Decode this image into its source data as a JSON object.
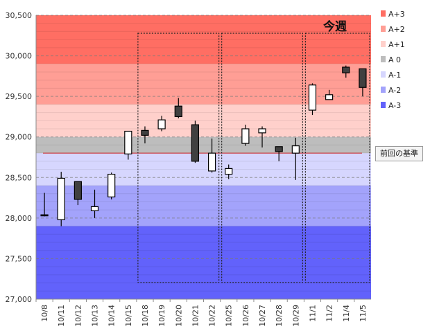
{
  "chart_data": {
    "type": "candlestick",
    "categories": [
      "10/8",
      "10/11",
      "10/12",
      "10/13",
      "10/14",
      "10/15",
      "10/18",
      "10/19",
      "10/20",
      "10/21",
      "10/22",
      "10/25",
      "10/26",
      "10/27",
      "10/28",
      "10/29",
      "11/1",
      "11/2",
      "11/4",
      "11/5"
    ],
    "candles": [
      {
        "open": 28040,
        "close": 28030,
        "high": 28310,
        "low": 28020
      },
      {
        "open": 27980,
        "close": 28490,
        "high": 28570,
        "low": 27900
      },
      {
        "open": 28450,
        "close": 28230,
        "high": 28450,
        "low": 28160
      },
      {
        "open": 28090,
        "close": 28140,
        "high": 28350,
        "low": 28000
      },
      {
        "open": 28260,
        "close": 28540,
        "high": 28560,
        "low": 28230
      },
      {
        "open": 28790,
        "close": 29070,
        "high": 29070,
        "low": 28720
      },
      {
        "open": 29080,
        "close": 29020,
        "high": 29130,
        "low": 28920
      },
      {
        "open": 29100,
        "close": 29210,
        "high": 29260,
        "low": 29070
      },
      {
        "open": 29380,
        "close": 29250,
        "high": 29480,
        "low": 29230
      },
      {
        "open": 29150,
        "close": 28700,
        "high": 29200,
        "low": 28680
      },
      {
        "open": 28580,
        "close": 28800,
        "high": 28980,
        "low": 28560
      },
      {
        "open": 28540,
        "close": 28610,
        "high": 28660,
        "low": 28480
      },
      {
        "open": 28920,
        "close": 29100,
        "high": 29150,
        "low": 28890
      },
      {
        "open": 29050,
        "close": 29100,
        "high": 29130,
        "low": 28870
      },
      {
        "open": 28880,
        "close": 28820,
        "high": 28880,
        "low": 28700
      },
      {
        "open": 28800,
        "close": 28890,
        "high": 28990,
        "low": 28470
      },
      {
        "open": 29330,
        "close": 29640,
        "high": 29660,
        "low": 29270
      },
      {
        "open": 29460,
        "close": 29520,
        "high": 29580,
        "low": 29460
      },
      {
        "open": 29860,
        "close": 29790,
        "high": 29880,
        "low": 29730
      },
      {
        "open": 29840,
        "close": 29610,
        "high": 29840,
        "low": 29500
      }
    ],
    "ylim": [
      27000,
      30500
    ],
    "yticks": [
      27000,
      27500,
      28000,
      28500,
      29000,
      29500,
      30000,
      30500
    ],
    "ytick_labels": [
      "27,000",
      "27,500",
      "28,000",
      "28,500",
      "29,000",
      "29,500",
      "30,000",
      "30,500"
    ],
    "bands": [
      {
        "name": "A+3",
        "from": 29900,
        "to": 30500,
        "color": "#ff6e63"
      },
      {
        "name": "A+2",
        "from": 29400,
        "to": 29900,
        "color": "#ff9e95"
      },
      {
        "name": "A+1",
        "from": 29000,
        "to": 29400,
        "color": "#ffd0cb"
      },
      {
        "name": "A 0",
        "from": 28800,
        "to": 29000,
        "color": "#bdbdbd"
      },
      {
        "name": "A-1",
        "from": 28400,
        "to": 28800,
        "color": "#d6d6fe"
      },
      {
        "name": "A-2",
        "from": 27900,
        "to": 28400,
        "color": "#a3a3fb"
      },
      {
        "name": "A-3",
        "from": 27000,
        "to": 27900,
        "color": "#6262fb"
      }
    ],
    "baseline_value": 28800,
    "baseline_color": "#cc2222",
    "week_boxes": [
      {
        "start": "10/18",
        "end": "10/22"
      },
      {
        "start": "10/25",
        "end": "10/29"
      },
      {
        "start": "11/1",
        "end": "11/5"
      }
    ],
    "current_week_label": "今週",
    "baseline_label": "前回の基準",
    "legend_position": "right",
    "grid": true,
    "rising_color": "#ffffff",
    "falling_color": "#404040"
  }
}
